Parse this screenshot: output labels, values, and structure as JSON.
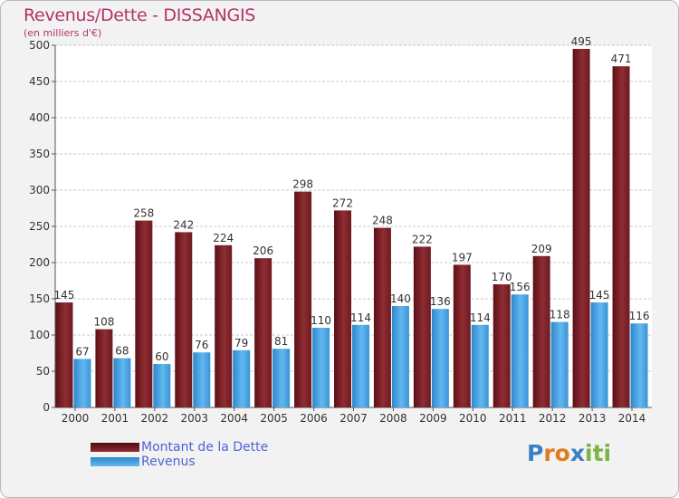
{
  "chart_data": {
    "type": "bar",
    "title": "Revenus/Dette - DISSANGIS",
    "subtitle": "(en milliers d'€)",
    "categories": [
      "2000",
      "2001",
      "2002",
      "2003",
      "2004",
      "2005",
      "2006",
      "2007",
      "2008",
      "2009",
      "2010",
      "2011",
      "2012",
      "2013",
      "2014"
    ],
    "series": [
      {
        "name": "Montant de la Dette",
        "color": "#7a1f26",
        "values": [
          145,
          108,
          258,
          242,
          224,
          206,
          298,
          272,
          248,
          222,
          197,
          170,
          209,
          495,
          471
        ]
      },
      {
        "name": "Revenus",
        "color": "#4aa3e3",
        "values": [
          67,
          68,
          60,
          76,
          79,
          81,
          110,
          114,
          140,
          136,
          114,
          156,
          118,
          145,
          116
        ]
      }
    ],
    "ylim": [
      0,
      500
    ],
    "yticks": [
      0,
      50,
      100,
      150,
      200,
      250,
      300,
      350,
      400,
      450,
      500
    ],
    "grid": true,
    "legend_position": "bottom-left"
  },
  "brand": {
    "letters": [
      {
        "char": "P",
        "color": "#3a7fc4"
      },
      {
        "char": "r",
        "color": "#e07a1f"
      },
      {
        "char": "o",
        "color": "#e07a1f"
      },
      {
        "char": "x",
        "color": "#3a7fc4"
      },
      {
        "char": "i",
        "color": "#7cb342"
      },
      {
        "char": "t",
        "color": "#7cb342"
      },
      {
        "char": "i",
        "color": "#7cb342"
      }
    ]
  }
}
